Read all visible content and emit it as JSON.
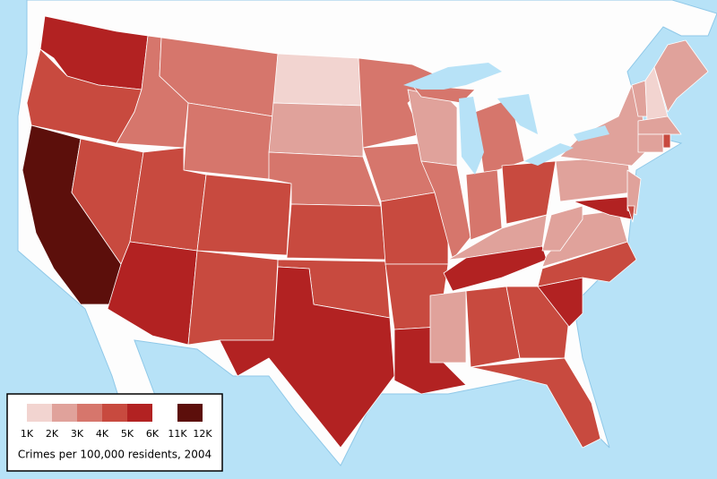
{
  "legend": {
    "title": "Crimes per 100,000 residents, 2004",
    "bins": [
      {
        "range": [
          1000,
          2000
        ],
        "color": "#f2d4d0"
      },
      {
        "range": [
          2000,
          3000
        ],
        "color": "#e0a29b"
      },
      {
        "range": [
          3000,
          4000
        ],
        "color": "#d6766c"
      },
      {
        "range": [
          4000,
          5000
        ],
        "color": "#c84a3f"
      },
      {
        "range": [
          5000,
          6000
        ],
        "color": "#b22222"
      },
      {
        "range": [
          11000,
          12000
        ],
        "color": "#5c0f0b"
      }
    ],
    "ticks": [
      {
        "value": 1000,
        "label": "1K"
      },
      {
        "value": 2000,
        "label": "2K"
      },
      {
        "value": 3000,
        "label": "3K"
      },
      {
        "value": 4000,
        "label": "4K"
      },
      {
        "value": 5000,
        "label": "5K"
      },
      {
        "value": 6000,
        "label": "6K"
      },
      {
        "value": 11000,
        "label": "11K"
      },
      {
        "value": 12000,
        "label": "12K"
      }
    ]
  }
}
